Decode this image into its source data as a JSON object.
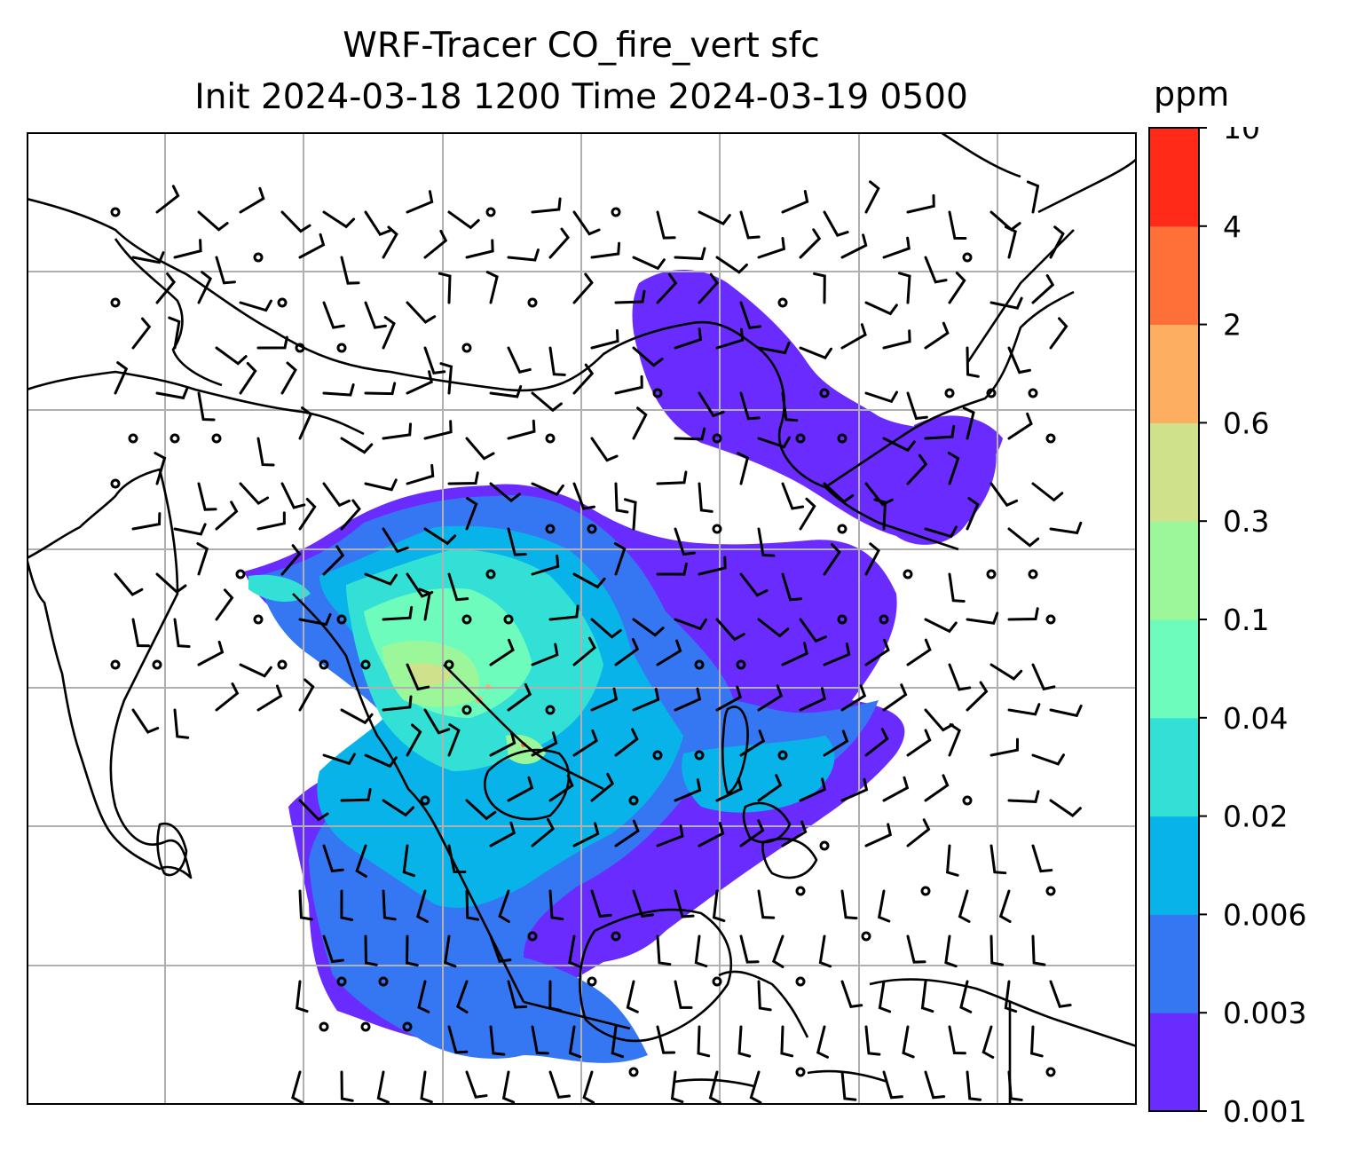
{
  "title": {
    "line1": "WRF-Tracer CO_fire_vert sfc",
    "line2": "Init 2024-03-18 1200 Time 2024-03-19 0500"
  },
  "colorbar": {
    "unit": "ppm",
    "ticks": [
      "0.001",
      "0.003",
      "0.006",
      "0.02",
      "0.04",
      "0.1",
      "0.3",
      "0.6",
      "2",
      "4",
      "10"
    ],
    "colors": [
      "#6a2bff",
      "#3577f3",
      "#08b3ea",
      "#33e0d6",
      "#6efcbd",
      "#9cf79a",
      "#cfe18a",
      "#fdae61",
      "#ff7039",
      "#ff2a17"
    ]
  },
  "map": {
    "gridlines": true,
    "coastline_color": "#000000",
    "features": [
      "coastlines",
      "country-borders",
      "wind-barbs",
      "CO-fire-plume"
    ]
  }
}
